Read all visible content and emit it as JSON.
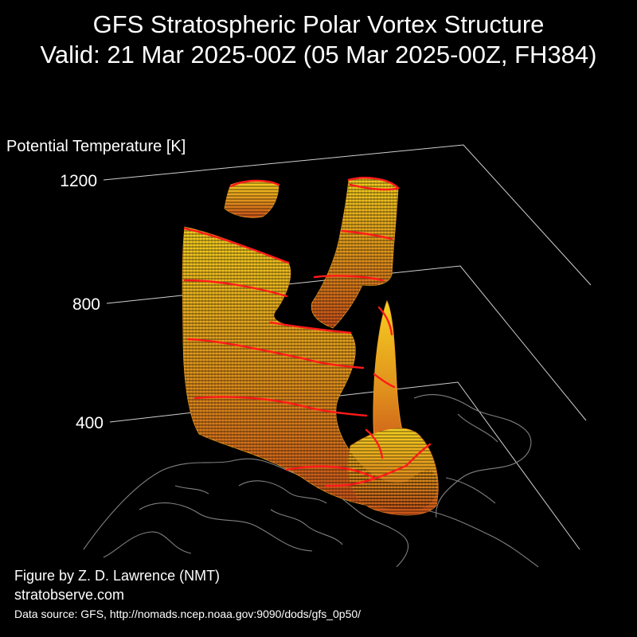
{
  "title": {
    "line1": "GFS Stratospheric Polar Vortex Structure",
    "line2": "Valid: 21 Mar 2025-00Z  (05 Mar 2025-00Z, FH384)"
  },
  "chart_data": {
    "type": "3d-isosurface",
    "zlabel": "Potential Temperature [K]",
    "zticks": [
      1200,
      800,
      400
    ],
    "colors": {
      "isosurface_low": "#d9641a",
      "isosurface_high": "#f5d020",
      "highlight_contour": "#ff1a1a",
      "coastline": "#808080",
      "grid": "#cfcfcf"
    }
  },
  "credits": {
    "author": "Figure by Z. D. Lawrence (NMT)",
    "website": "stratobserve.com",
    "source": "Data source: GFS, http://nomads.ncep.noaa.gov:9090/dods/gfs_0p50/"
  }
}
